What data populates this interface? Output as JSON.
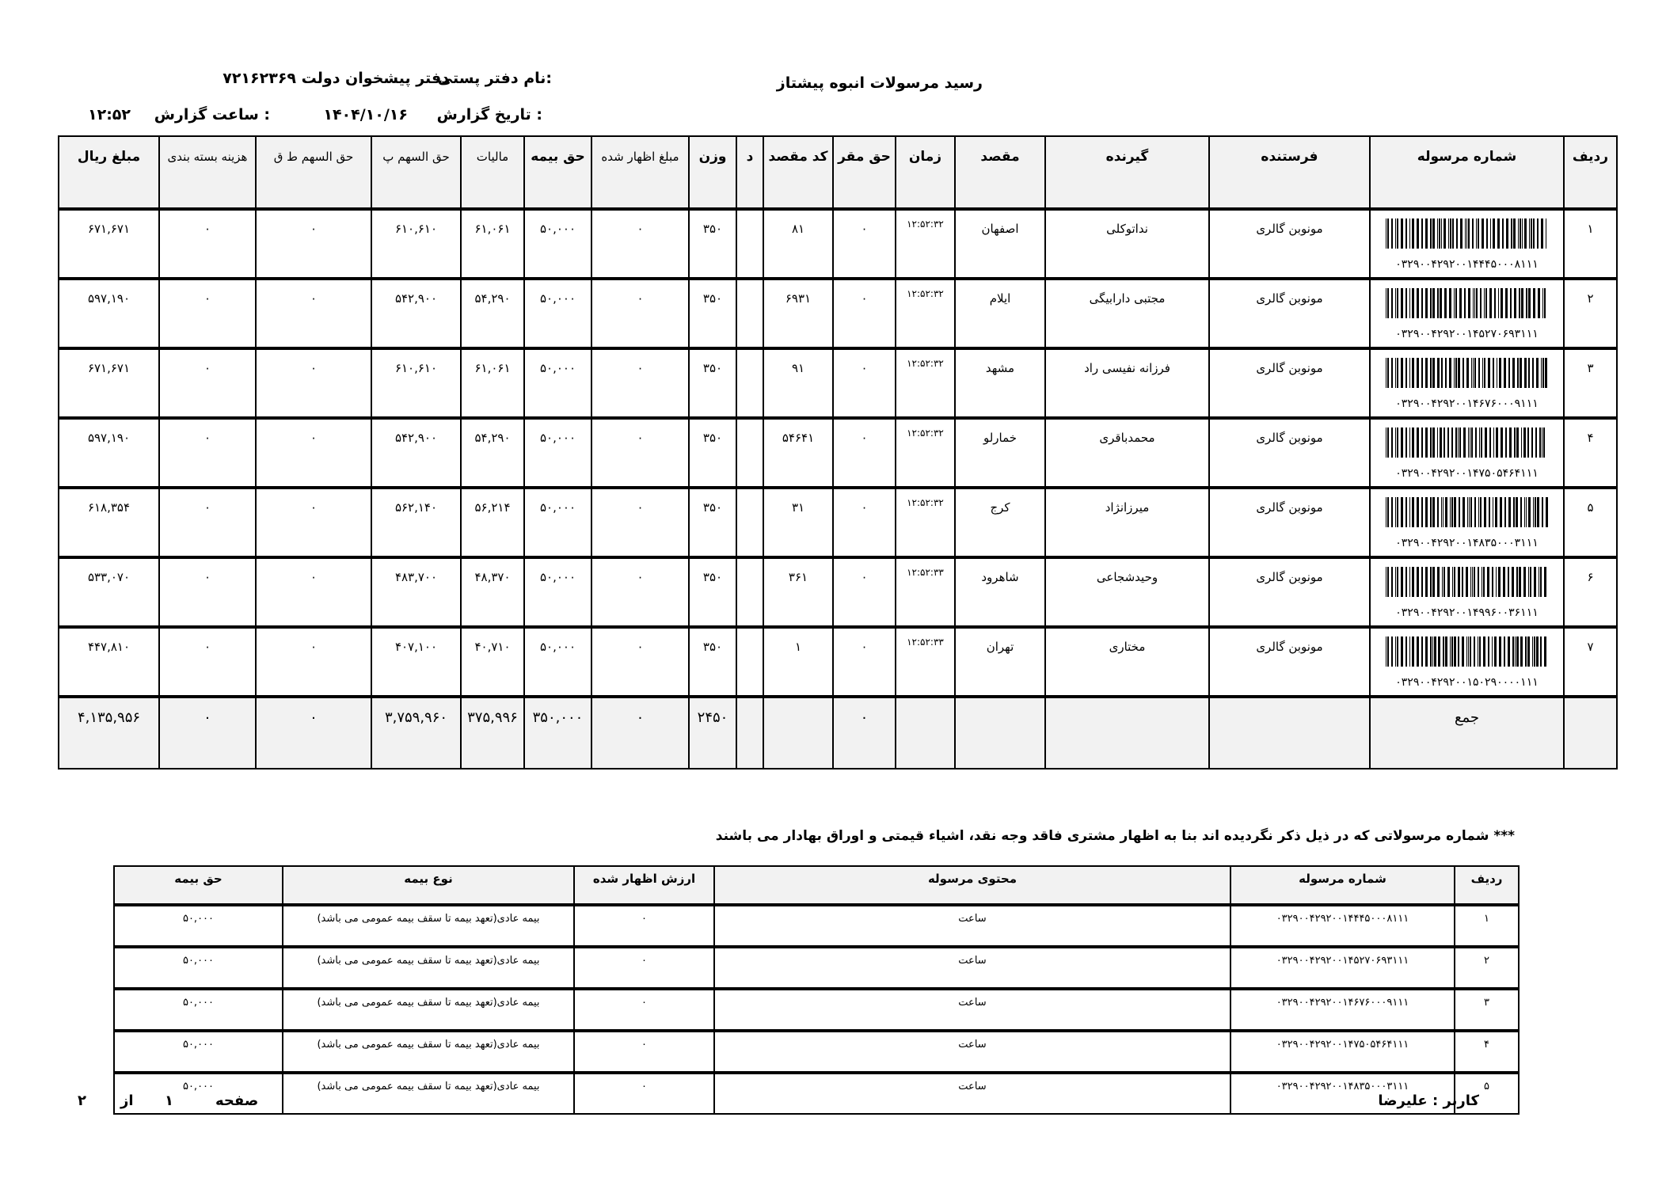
{
  "header": {
    "title": "رسید مرسولات انبوه    پیشتاز",
    "office_label": "نام دفتر پستی:",
    "office_value": "دفتر پیشخوان دولت ۷۲۱۶۲۳۶۹",
    "date_label": "تاریخ گزارش :",
    "date_value": "۱۴۰۴/۱۰/۱۶",
    "time_label": "ساعت گزارش :",
    "time_value": "۱۲:۵۲"
  },
  "main_table": {
    "columns": [
      {
        "label": "ردیف",
        "bold": true
      },
      {
        "label": "شماره مرسوله",
        "bold": true
      },
      {
        "label": "فرستنده",
        "bold": true
      },
      {
        "label": "گیرنده",
        "bold": true
      },
      {
        "label": "مقصد",
        "bold": true
      },
      {
        "label": "زمان",
        "bold": true
      },
      {
        "label": "حق مقر",
        "bold": true
      },
      {
        "label": "کد مقصد",
        "bold": true
      },
      {
        "label": "د",
        "bold": true
      },
      {
        "label": "وزن",
        "bold": true
      },
      {
        "label": "مبلغ اظهار شده",
        "bold": false
      },
      {
        "label": "حق بیمه",
        "bold": true
      },
      {
        "label": "مالیات",
        "bold": false
      },
      {
        "label": "حق السهم پ",
        "bold": false
      },
      {
        "label": "حق السهم ط ق",
        "bold": false
      },
      {
        "label": "هزینه بسته بندی",
        "bold": false
      },
      {
        "label": "مبلغ ریال",
        "bold": true
      }
    ],
    "rows": [
      [
        "۱",
        "۰۳۲۹۰۰۴۲۹۲۰۰۱۴۴۴۵۰۰۰۸۱۱۱",
        "مونوبن گالری",
        "نداتوکلی",
        "اصفهان",
        "۱۲:۵۲:۳۲",
        "۰",
        "۸۱",
        "",
        "۳۵۰",
        "۰",
        "۵۰,۰۰۰",
        "۶۱,۰۶۱",
        "۶۱۰,۶۱۰",
        "۰",
        "۰",
        "۶۷۱,۶۷۱"
      ],
      [
        "۲",
        "۰۳۲۹۰۰۴۲۹۲۰۰۱۴۵۲۷۰۶۹۳۱۱۱",
        "مونوبن گالری",
        "مجتبی دارابیگی",
        "ایلام",
        "۱۲:۵۲:۳۲",
        "۰",
        "۶۹۳۱",
        "",
        "۳۵۰",
        "۰",
        "۵۰,۰۰۰",
        "۵۴,۲۹۰",
        "۵۴۲,۹۰۰",
        "۰",
        "۰",
        "۵۹۷,۱۹۰"
      ],
      [
        "۳",
        "۰۳۲۹۰۰۴۲۹۲۰۰۱۴۶۷۶۰۰۰۹۱۱۱",
        "مونوبن گالری",
        "فرزانه نفیسی راد",
        "مشهد",
        "۱۲:۵۲:۳۲",
        "۰",
        "۹۱",
        "",
        "۳۵۰",
        "۰",
        "۵۰,۰۰۰",
        "۶۱,۰۶۱",
        "۶۱۰,۶۱۰",
        "۰",
        "۰",
        "۶۷۱,۶۷۱"
      ],
      [
        "۴",
        "۰۳۲۹۰۰۴۲۹۲۰۰۱۴۷۵۰۵۴۶۴۱۱۱",
        "مونوبن گالری",
        "محمدباقری",
        "خمارلو",
        "۱۲:۵۲:۳۲",
        "۰",
        "۵۴۶۴۱",
        "",
        "۳۵۰",
        "۰",
        "۵۰,۰۰۰",
        "۵۴,۲۹۰",
        "۵۴۲,۹۰۰",
        "۰",
        "۰",
        "۵۹۷,۱۹۰"
      ],
      [
        "۵",
        "۰۳۲۹۰۰۴۲۹۲۰۰۱۴۸۳۵۰۰۰۳۱۱۱",
        "مونوبن گالری",
        "میرزانژاد",
        "کرج",
        "۱۲:۵۲:۳۲",
        "۰",
        "۳۱",
        "",
        "۳۵۰",
        "۰",
        "۵۰,۰۰۰",
        "۵۶,۲۱۴",
        "۵۶۲,۱۴۰",
        "۰",
        "۰",
        "۶۱۸,۳۵۴"
      ],
      [
        "۶",
        "۰۳۲۹۰۰۴۲۹۲۰۰۱۴۹۹۶۰۰۳۶۱۱۱",
        "مونوبن گالری",
        "وحیدشجاعی",
        "شاهرود",
        "۱۲:۵۲:۳۳",
        "۰",
        "۳۶۱",
        "",
        "۳۵۰",
        "۰",
        "۵۰,۰۰۰",
        "۴۸,۳۷۰",
        "۴۸۳,۷۰۰",
        "۰",
        "۰",
        "۵۳۳,۰۷۰"
      ],
      [
        "۷",
        "۰۳۲۹۰۰۴۲۹۲۰۰۱۵۰۲۹۰۰۰۰۱۱۱",
        "مونوبن گالری",
        "مختاری",
        "تهران",
        "۱۲:۵۲:۳۳",
        "۰",
        "۱",
        "",
        "۳۵۰",
        "۰",
        "۵۰,۰۰۰",
        "۴۰,۷۱۰",
        "۴۰۷,۱۰۰",
        "۰",
        "۰",
        "۴۴۷,۸۱۰"
      ]
    ],
    "total": [
      "",
      "جمع",
      "",
      "",
      "",
      "",
      "۰",
      "",
      "",
      "۲۴۵۰",
      "۰",
      "۳۵۰,۰۰۰",
      "۳۷۵,۹۹۶",
      "۳,۷۵۹,۹۶۰",
      "۰",
      "۰",
      "۴,۱۳۵,۹۵۶"
    ]
  },
  "note": "*** شماره مرسولاتی که در ذیل ذکر نگردیده اند بنا به اظهار مشتری فاقد وجه نقد، اشیاء قیمتی و اوراق بهادار می باشند",
  "insurance_table": {
    "columns": [
      "ردیف",
      "شماره مرسوله",
      "محتوی مرسوله",
      "ارزش اظهار شده",
      "نوع بیمه",
      "حق بیمه"
    ],
    "rows": [
      [
        "۱",
        "۰۳۲۹۰۰۴۲۹۲۰۰۱۴۴۴۵۰۰۰۸۱۱۱",
        "ساعت",
        "۰",
        "بیمه عادی(تعهد بیمه تا سقف بیمه عمومی می باشد)",
        "۵۰,۰۰۰"
      ],
      [
        "۲",
        "۰۳۲۹۰۰۴۲۹۲۰۰۱۴۵۲۷۰۶۹۳۱۱۱",
        "ساعت",
        "۰",
        "بیمه عادی(تعهد بیمه تا سقف بیمه عمومی می باشد)",
        "۵۰,۰۰۰"
      ],
      [
        "۳",
        "۰۳۲۹۰۰۴۲۹۲۰۰۱۴۶۷۶۰۰۰۹۱۱۱",
        "ساعت",
        "۰",
        "بیمه عادی(تعهد بیمه تا سقف بیمه عمومی می باشد)",
        "۵۰,۰۰۰"
      ],
      [
        "۴",
        "۰۳۲۹۰۰۴۲۹۲۰۰۱۴۷۵۰۵۴۶۴۱۱۱",
        "ساعت",
        "۰",
        "بیمه عادی(تعهد بیمه تا سقف بیمه عمومی می باشد)",
        "۵۰,۰۰۰"
      ],
      [
        "۵",
        "۰۳۲۹۰۰۴۲۹۲۰۰۱۴۸۳۵۰۰۰۳۱۱۱",
        "ساعت",
        "۰",
        "بیمه عادی(تعهد بیمه تا سقف بیمه عمومی می باشد)",
        "۵۰,۰۰۰"
      ]
    ]
  },
  "footer": {
    "user": "کاربر : علیرضا",
    "page_label": "صفحه",
    "page_current": "۱",
    "page_of": "از",
    "page_total": "۲"
  },
  "colors": {
    "header_bg": "#f2f2f2",
    "border": "#000000"
  }
}
